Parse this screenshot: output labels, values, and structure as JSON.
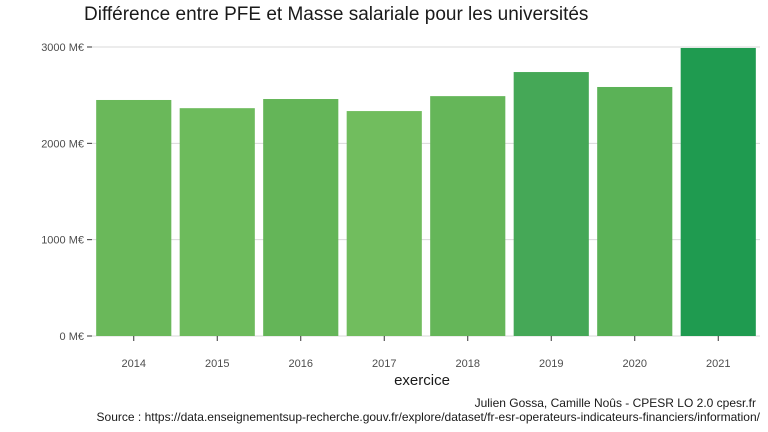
{
  "chart_data": {
    "type": "bar",
    "title": "Différence entre PFE et Masse salariale pour les universités",
    "xlabel": "exercice",
    "ylabel": "",
    "categories": [
      "2014",
      "2015",
      "2016",
      "2017",
      "2018",
      "2019",
      "2020",
      "2021"
    ],
    "values": [
      2450,
      2365,
      2460,
      2335,
      2490,
      2740,
      2585,
      2990
    ],
    "colors": [
      "#6ab85a",
      "#6dbb5c",
      "#64b558",
      "#71bd5e",
      "#65b659",
      "#45a857",
      "#5bb257",
      "#1f9b50"
    ],
    "ylim": [
      0,
      3000
    ],
    "yticks": [
      0,
      1000,
      2000,
      3000
    ],
    "ytick_labels": [
      "0 M€",
      "1000 M€",
      "2000 M€",
      "3000 M€"
    ],
    "grid": true,
    "legend": "none"
  },
  "caption": {
    "credit": "Julien Gossa, Camille Noûs - CPESR LO 2.0 cpesr.fr",
    "source": "Source : https://data.enseignementsup-recherche.gouv.fr/explore/dataset/fr-esr-operateurs-indicateurs-financiers/information/"
  }
}
